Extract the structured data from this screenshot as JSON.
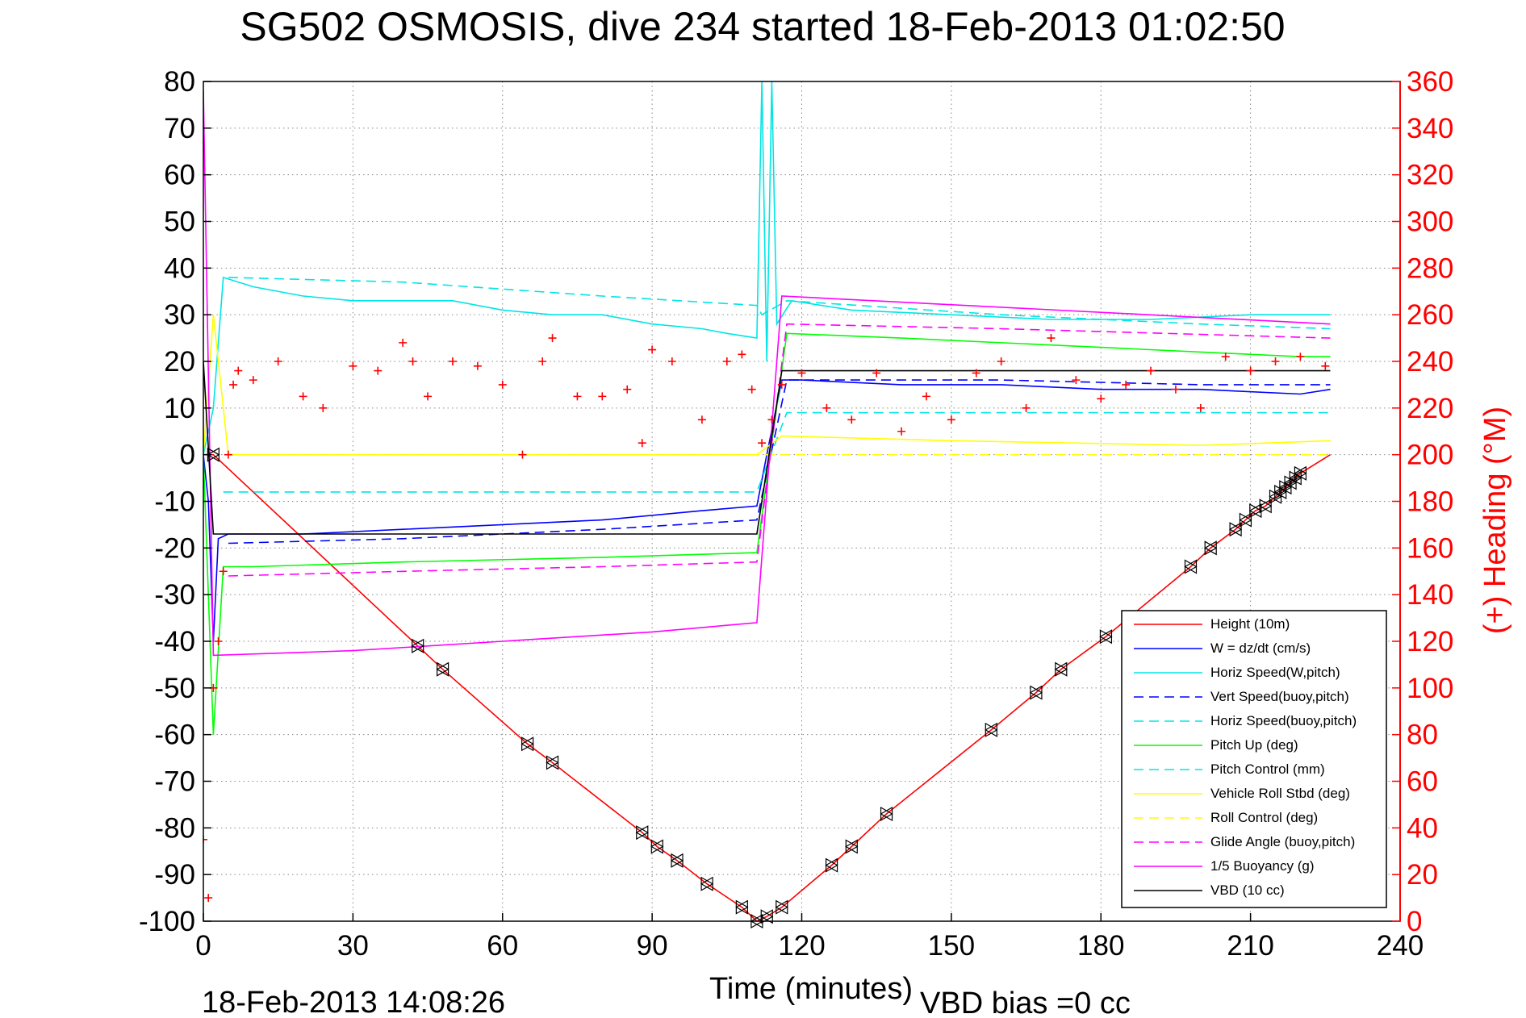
{
  "chart_data": {
    "type": "line",
    "title": "SG502 OSMOSIS, dive 234 started 18-Feb-2013 01:02:50",
    "xlabel": "Time (minutes)",
    "ylabel_right": "(+) Heading (°M)",
    "xlim": [
      0,
      240
    ],
    "ylim": [
      -100,
      80
    ],
    "ylim_right": [
      0,
      360
    ],
    "x_ticks": [
      0,
      30,
      60,
      90,
      120,
      150,
      180,
      210,
      240
    ],
    "y_ticks": [
      80,
      70,
      60,
      50,
      40,
      30,
      20,
      10,
      0,
      -10,
      -20,
      -30,
      -40,
      -50,
      -60,
      -70,
      -80,
      -90,
      -100
    ],
    "y_ticks_right": [
      360,
      340,
      320,
      300,
      280,
      260,
      240,
      220,
      200,
      180,
      160,
      140,
      120,
      100,
      80,
      60,
      40,
      20,
      0
    ],
    "grid": true,
    "legend_position": "bottom-right",
    "footer_date": "18-Feb-2013 14:08:26",
    "footer_bias": "VBD bias =0 cc",
    "series": [
      {
        "name": "Height (10m)",
        "color": "#ff0000",
        "style": "solid",
        "x": [
          0,
          2,
          43,
          48,
          65,
          70,
          88,
          91,
          95,
          101,
          108,
          111,
          113,
          116,
          126,
          130,
          137,
          158,
          167,
          172,
          181,
          198,
          202,
          207,
          209,
          211,
          213,
          215,
          216,
          217,
          218,
          219,
          220,
          226
        ],
        "y": [
          0,
          0,
          -41,
          -46,
          -62,
          -66,
          -81,
          -84,
          -87,
          -92,
          -97,
          -100,
          -99,
          -97,
          -88,
          -84,
          -77,
          -59,
          -51,
          -46,
          -39,
          -24,
          -20,
          -16,
          -14,
          -12,
          -11,
          -9,
          -8,
          -7,
          -6,
          -5,
          -4,
          0
        ]
      },
      {
        "name": "W = dz/dt (cm/s)",
        "color": "#0000ff",
        "style": "solid",
        "x": [
          0,
          1,
          2,
          3,
          5,
          20,
          40,
          60,
          80,
          100,
          111,
          113,
          116,
          120,
          140,
          160,
          180,
          200,
          220,
          226
        ],
        "y": [
          0,
          -10,
          -40,
          -18,
          -17,
          -17,
          -16,
          -15,
          -14,
          -12,
          -11,
          0,
          16,
          16,
          15,
          15,
          14,
          14,
          13,
          14
        ]
      },
      {
        "name": "Horiz Speed(W,pitch)",
        "color": "#00e5e5",
        "style": "solid",
        "x": [
          0,
          2,
          4,
          10,
          20,
          30,
          40,
          50,
          60,
          70,
          80,
          90,
          100,
          105,
          111,
          112,
          113,
          114,
          115,
          118,
          130,
          150,
          170,
          190,
          210,
          226
        ],
        "y": [
          0,
          10,
          38,
          36,
          34,
          33,
          33,
          33,
          31,
          30,
          30,
          28,
          27,
          26,
          25,
          80,
          20,
          80,
          28,
          33,
          31,
          30,
          29,
          29,
          30,
          30
        ]
      },
      {
        "name": "Vert Speed(buoy,pitch)",
        "color": "#0000ff",
        "style": "dashed",
        "x": [
          5,
          40,
          80,
          111,
          117,
          160,
          200,
          226
        ],
        "y": [
          -19,
          -18,
          -16,
          -14,
          16,
          16,
          15,
          15
        ]
      },
      {
        "name": "Horiz Speed(buoy,pitch)",
        "color": "#00e5e5",
        "style": "dashed",
        "x": [
          5,
          40,
          80,
          111,
          112,
          117,
          160,
          200,
          226
        ],
        "y": [
          38,
          37,
          34,
          32,
          30,
          33,
          30,
          28,
          27
        ]
      },
      {
        "name": "Pitch Up (deg)",
        "color": "#00ff00",
        "style": "solid",
        "x": [
          0,
          2,
          4,
          10,
          40,
          80,
          111,
          117,
          140,
          180,
          220,
          226
        ],
        "y": [
          0,
          -60,
          -24,
          -24,
          -23,
          -22,
          -21,
          26,
          25,
          23,
          21,
          21
        ]
      },
      {
        "name": "Pitch Control (mm)",
        "color": "#00e5e5",
        "style": "dashed",
        "x": [
          4,
          111,
          117,
          226
        ],
        "y": [
          -8,
          -8,
          9,
          9
        ]
      },
      {
        "name": "Vehicle Roll Stbd (deg)",
        "color": "#ffff00",
        "style": "solid",
        "x": [
          0,
          2,
          5,
          10,
          40,
          60,
          111,
          116,
          150,
          200,
          226
        ],
        "y": [
          0,
          30,
          0,
          0,
          0,
          0,
          0,
          4,
          3,
          2,
          3
        ]
      },
      {
        "name": "Roll Control (deg)",
        "color": "#ffff00",
        "style": "dashed",
        "x": [
          5,
          226
        ],
        "y": [
          0,
          0
        ]
      },
      {
        "name": "Glide Angle (buoy,pitch)",
        "color": "#ff00ff",
        "style": "dashed",
        "x": [
          5,
          40,
          80,
          111,
          117,
          160,
          226
        ],
        "y": [
          -26,
          -25,
          -24,
          -23,
          28,
          27,
          25
        ]
      },
      {
        "name": "1/5 Buoyancy (g)",
        "color": "#ff00ff",
        "style": "solid",
        "x": [
          0,
          2,
          30,
          60,
          90,
          111,
          116,
          226
        ],
        "y": [
          78,
          -43,
          -42,
          -40,
          -38,
          -36,
          34,
          28
        ]
      },
      {
        "name": "VBD (10 cc)",
        "color": "#000000",
        "style": "solid",
        "x": [
          0,
          2,
          40,
          80,
          111,
          116,
          150,
          226
        ],
        "y": [
          20,
          -17,
          -17,
          -17,
          -17,
          18,
          18,
          18
        ]
      }
    ],
    "heading_series": {
      "name": "(+) Heading (°M)",
      "color": "#ff0000",
      "marker": "+",
      "x": [
        0,
        1,
        2,
        3,
        4,
        5,
        6,
        7,
        10,
        15,
        20,
        24,
        30,
        35,
        40,
        42,
        45,
        50,
        55,
        60,
        64,
        68,
        70,
        75,
        80,
        85,
        88,
        90,
        94,
        100,
        105,
        108,
        110,
        112,
        114,
        116,
        120,
        125,
        130,
        135,
        140,
        145,
        150,
        155,
        160,
        165,
        170,
        175,
        180,
        185,
        190,
        195,
        200,
        205,
        210,
        215,
        220,
        225
      ],
      "y": [
        35,
        10,
        100,
        120,
        150,
        200,
        230,
        236,
        232,
        240,
        225,
        220,
        238,
        236,
        248,
        240,
        225,
        240,
        238,
        230,
        200,
        240,
        250,
        225,
        225,
        228,
        205,
        245,
        240,
        215,
        240,
        243,
        228,
        205,
        215,
        230,
        235,
        220,
        215,
        235,
        210,
        225,
        215,
        235,
        240,
        220,
        250,
        232,
        224,
        230,
        236,
        228,
        220,
        242,
        236,
        240,
        242,
        238
      ]
    }
  },
  "legend": {
    "items": [
      {
        "label": "Height (10m)",
        "color": "#ff0000",
        "style": "solid"
      },
      {
        "label": "W = dz/dt (cm/s)",
        "color": "#0000ff",
        "style": "solid"
      },
      {
        "label": "Horiz Speed(W,pitch)",
        "color": "#00e5e5",
        "style": "solid"
      },
      {
        "label": "Vert Speed(buoy,pitch)",
        "color": "#0000ff",
        "style": "dashed"
      },
      {
        "label": "Horiz Speed(buoy,pitch)",
        "color": "#00e5e5",
        "style": "dashed"
      },
      {
        "label": "Pitch Up (deg)",
        "color": "#00ff00",
        "style": "solid"
      },
      {
        "label": "Pitch Control (mm)",
        "color": "#00e5e5",
        "style": "dashed"
      },
      {
        "label": "Vehicle Roll Stbd (deg)",
        "color": "#ffff00",
        "style": "solid"
      },
      {
        "label": "Roll Control (deg)",
        "color": "#ffff00",
        "style": "dashed"
      },
      {
        "label": "Glide Angle (buoy,pitch)",
        "color": "#ff00ff",
        "style": "dashed"
      },
      {
        "label": "1/5 Buoyancy (g)",
        "color": "#ff00ff",
        "style": "solid"
      },
      {
        "label": "VBD (10 cc)",
        "color": "#000000",
        "style": "solid"
      }
    ]
  }
}
